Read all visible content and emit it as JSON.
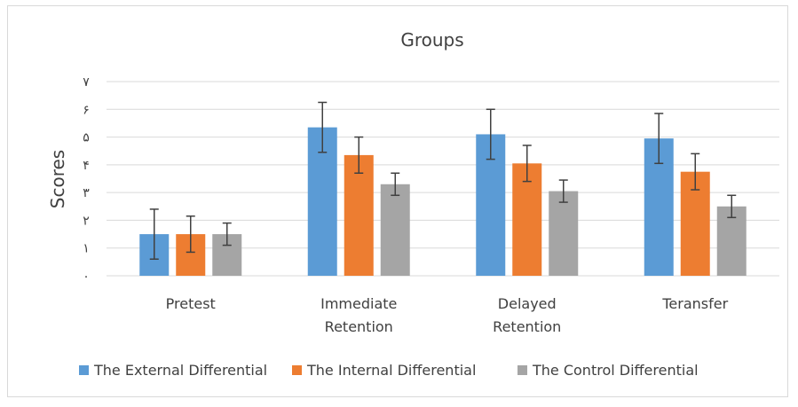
{
  "chart_data": {
    "type": "bar",
    "title": "Groups",
    "xlabel": "",
    "ylabel": "Scores",
    "ylim": [
      0,
      7
    ],
    "y_tick_labels": [
      "٠",
      "١",
      "٢",
      "٣",
      "۴",
      "۵",
      "۶",
      "٧"
    ],
    "categories": [
      [
        "Pretest"
      ],
      [
        "Immediate",
        "Retention"
      ],
      [
        "Delayed",
        "Retention"
      ],
      [
        "Teransfer"
      ]
    ],
    "series": [
      {
        "name": "The External Differential",
        "color": "#5b9bd5",
        "values": [
          1.5,
          5.35,
          5.1,
          4.95
        ],
        "error": [
          0.9,
          0.9,
          0.9,
          0.9
        ]
      },
      {
        "name": "The Internal Differential",
        "color": "#ed7d31",
        "values": [
          1.5,
          4.35,
          4.05,
          3.75
        ],
        "error": [
          0.65,
          0.65,
          0.65,
          0.65
        ]
      },
      {
        "name": "The Control Differential",
        "color": "#a5a5a5",
        "values": [
          1.5,
          3.3,
          3.05,
          2.5
        ],
        "error": [
          0.4,
          0.4,
          0.4,
          0.4
        ]
      }
    ],
    "grid": true,
    "legend_position": "bottom"
  }
}
